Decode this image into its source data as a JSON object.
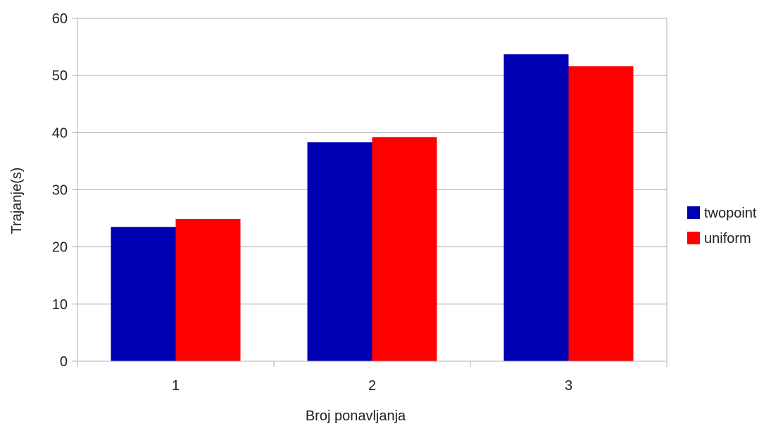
{
  "chart_data": {
    "type": "bar",
    "title": "",
    "xlabel": "Broj ponavljanja",
    "ylabel": "Trajanje(s)",
    "categories": [
      "1",
      "2",
      "3"
    ],
    "series": [
      {
        "name": "twopoint",
        "color": "#0000b3",
        "values": [
          23.5,
          38.3,
          53.7
        ]
      },
      {
        "name": "uniform",
        "color": "#ff0000",
        "values": [
          24.9,
          39.2,
          51.6
        ]
      }
    ],
    "ylim": [
      0,
      60
    ],
    "yticks": [
      0,
      10,
      20,
      30,
      40,
      50,
      60
    ],
    "grid": true,
    "legend": "right"
  }
}
